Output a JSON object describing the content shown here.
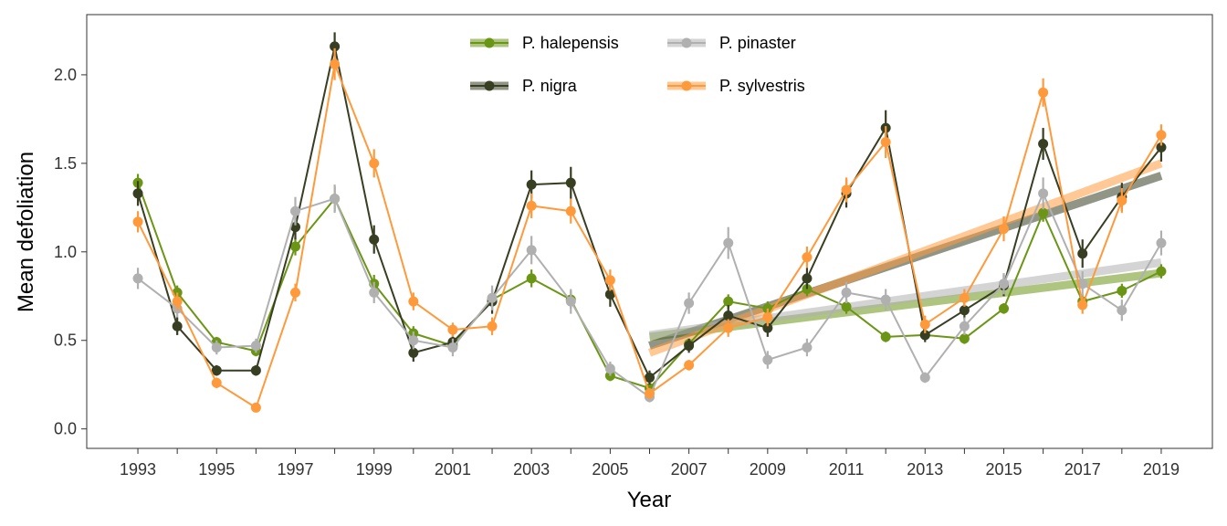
{
  "chart_data": {
    "type": "line",
    "xlabel": "Year",
    "ylabel": "Mean defoliation",
    "xlim": [
      1991.7,
      2020.3
    ],
    "ylim": [
      -0.11,
      2.34
    ],
    "x_ticks": [
      "1993",
      "1995",
      "1997",
      "1999",
      "2001",
      "2003",
      "2005",
      "2007",
      "2009",
      "2011",
      "2013",
      "2015",
      "2017",
      "2019"
    ],
    "y_ticks": [
      "0.0",
      "0.5",
      "1.0",
      "1.5",
      "2.0"
    ],
    "grid": false,
    "legend_position": "top-center",
    "series": [
      {
        "name": "P. halepensis",
        "color": "#6b9615",
        "x": [
          1993,
          1994,
          1995,
          1996,
          1997,
          1998,
          1999,
          2000,
          2001,
          2002,
          2003,
          2004,
          2005,
          2006,
          2007,
          2008,
          2009,
          2010,
          2011,
          2012,
          2013,
          2014,
          2015,
          2016,
          2017,
          2018,
          2019
        ],
        "y": [
          1.39,
          0.77,
          0.49,
          0.44,
          1.03,
          1.3,
          0.82,
          0.54,
          0.47,
          0.73,
          0.85,
          0.73,
          0.3,
          0.23,
          0.48,
          0.72,
          0.68,
          0.79,
          0.69,
          0.52,
          0.53,
          0.51,
          0.68,
          1.22,
          0.72,
          0.78,
          0.89
        ],
        "err": [
          0.05,
          0.04,
          0.03,
          0.03,
          0.05,
          0.07,
          0.05,
          0.04,
          0.03,
          0.04,
          0.05,
          0.05,
          0.03,
          0.03,
          0.03,
          0.04,
          0.04,
          0.04,
          0.04,
          0.03,
          0.03,
          0.03,
          0.03,
          0.05,
          0.04,
          0.04,
          0.04
        ],
        "trend": {
          "x": [
            2006,
            2019
          ],
          "y": [
            0.52,
            0.88
          ]
        }
      },
      {
        "name": "P. nigra",
        "color": "#373e22",
        "x": [
          1993,
          1994,
          1995,
          1996,
          1997,
          1998,
          1999,
          2000,
          2001,
          2002,
          2003,
          2004,
          2005,
          2006,
          2007,
          2008,
          2009,
          2010,
          2011,
          2012,
          2013,
          2014,
          2015,
          2016,
          2017,
          2018,
          2019
        ],
        "y": [
          1.33,
          0.58,
          0.33,
          0.33,
          1.14,
          2.16,
          1.07,
          0.43,
          0.49,
          0.72,
          1.38,
          1.39,
          0.76,
          0.29,
          0.47,
          0.64,
          0.57,
          0.85,
          1.33,
          1.7,
          0.53,
          0.67,
          0.81,
          1.61,
          0.99,
          1.31,
          1.59
        ],
        "err": [
          0.07,
          0.05,
          0.03,
          0.03,
          0.07,
          0.08,
          0.08,
          0.05,
          0.04,
          0.07,
          0.08,
          0.09,
          0.07,
          0.04,
          0.04,
          0.06,
          0.05,
          0.06,
          0.08,
          0.1,
          0.04,
          0.05,
          0.06,
          0.09,
          0.08,
          0.08,
          0.08
        ],
        "trend": {
          "x": [
            2006,
            2019
          ],
          "y": [
            0.47,
            1.43
          ]
        }
      },
      {
        "name": "P. pinaster",
        "color": "#b0b0b0",
        "x": [
          1993,
          1994,
          1995,
          1996,
          1997,
          1998,
          1999,
          2000,
          2001,
          2002,
          2003,
          2004,
          2005,
          2006,
          2007,
          2008,
          2009,
          2010,
          2011,
          2012,
          2013,
          2014,
          2015,
          2016,
          2017,
          2018,
          2019
        ],
        "y": [
          0.85,
          0.68,
          0.46,
          0.47,
          1.23,
          1.3,
          0.77,
          0.5,
          0.46,
          0.74,
          1.01,
          0.72,
          0.34,
          0.18,
          0.71,
          1.05,
          0.39,
          0.46,
          0.77,
          0.73,
          0.29,
          0.58,
          0.82,
          1.33,
          0.82,
          0.67,
          1.05
        ],
        "err": [
          0.06,
          0.05,
          0.04,
          0.04,
          0.08,
          0.08,
          0.06,
          0.05,
          0.05,
          0.07,
          0.08,
          0.07,
          0.04,
          0.03,
          0.06,
          0.09,
          0.05,
          0.05,
          0.06,
          0.06,
          0.03,
          0.05,
          0.06,
          0.09,
          0.07,
          0.06,
          0.07
        ],
        "trend": {
          "x": [
            2006,
            2019
          ],
          "y": [
            0.53,
            0.94
          ]
        }
      },
      {
        "name": "P. sylvestris",
        "color": "#ff9a3c",
        "x": [
          1993,
          1994,
          1995,
          1996,
          1997,
          1998,
          1999,
          2000,
          2001,
          2002,
          2003,
          2004,
          2005,
          2006,
          2007,
          2008,
          2009,
          2010,
          2011,
          2012,
          2013,
          2014,
          2015,
          2016,
          2017,
          2018,
          2019
        ],
        "y": [
          1.17,
          0.72,
          0.26,
          0.12,
          0.77,
          2.06,
          1.5,
          0.72,
          0.56,
          0.58,
          1.26,
          1.23,
          0.84,
          0.2,
          0.36,
          0.57,
          0.63,
          0.97,
          1.35,
          1.62,
          0.59,
          0.74,
          1.13,
          1.9,
          0.7,
          1.29,
          1.66
        ],
        "err": [
          0.06,
          0.05,
          0.03,
          0.02,
          0.05,
          0.09,
          0.08,
          0.05,
          0.04,
          0.05,
          0.07,
          0.07,
          0.06,
          0.03,
          0.03,
          0.05,
          0.05,
          0.06,
          0.07,
          0.09,
          0.05,
          0.05,
          0.07,
          0.08,
          0.05,
          0.07,
          0.06
        ],
        "trend": {
          "x": [
            2006,
            2019
          ],
          "y": [
            0.43,
            1.5
          ]
        }
      }
    ]
  }
}
